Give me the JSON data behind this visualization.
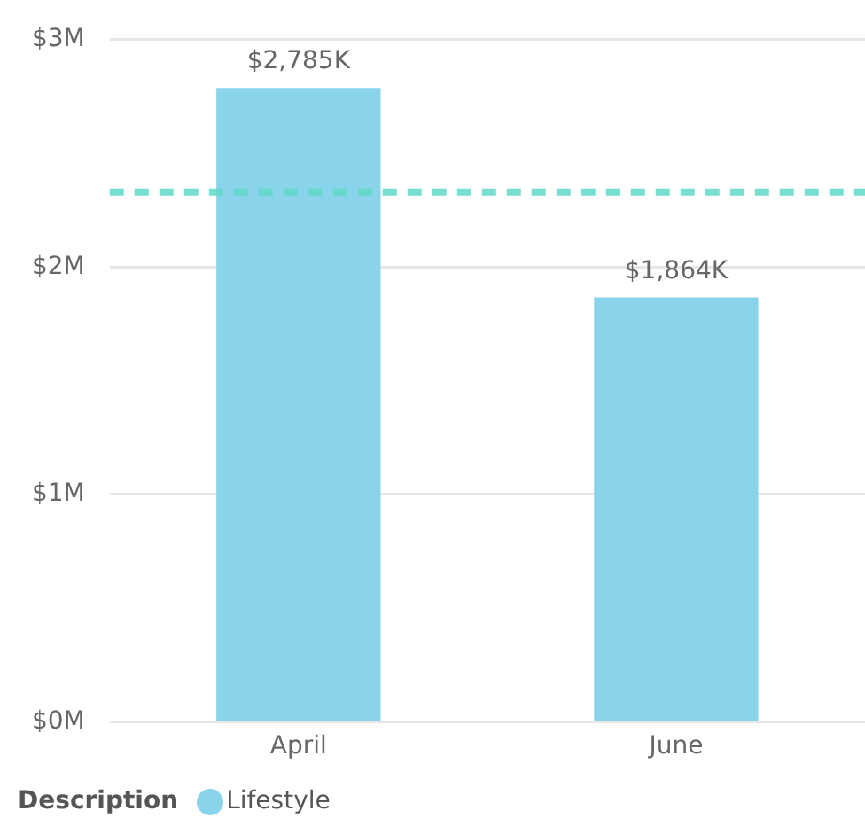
{
  "chart_data": {
    "type": "bar",
    "categories": [
      "April",
      "June"
    ],
    "series": [
      {
        "name": "Lifestyle",
        "color": "#89d4eb",
        "values": [
          2785000,
          1864000
        ],
        "value_labels": [
          "$2,785K",
          "$1,864K"
        ]
      }
    ],
    "ylim": [
      0,
      3000000
    ],
    "yticks": [
      {
        "value": 0,
        "label": "$0M"
      },
      {
        "value": 1000000,
        "label": "$1M"
      },
      {
        "value": 2000000,
        "label": "$2M"
      },
      {
        "value": 3000000,
        "label": "$3M"
      }
    ],
    "grid": "y",
    "legend": "bottom left",
    "legend_title": "Description",
    "ref_lines": [
      {
        "axis": "y",
        "value": 2330000,
        "color": "#5fd8c8",
        "line_style": "dashed"
      }
    ]
  }
}
